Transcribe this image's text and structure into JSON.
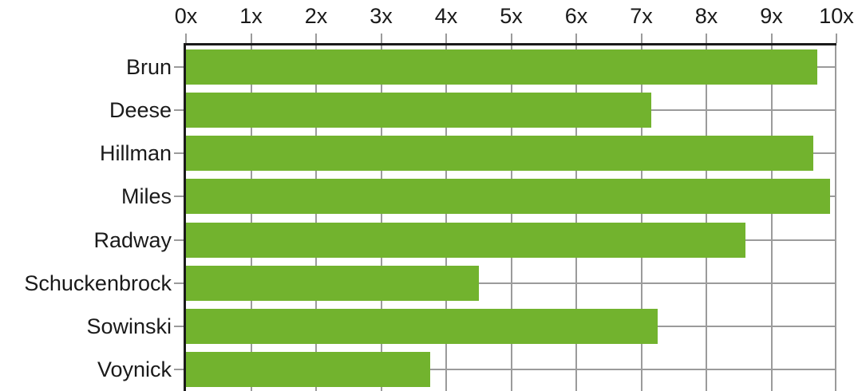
{
  "chart_data": {
    "type": "bar",
    "orientation": "horizontal",
    "categories": [
      "Brun",
      "Deese",
      "Hillman",
      "Miles",
      "Radway",
      "Schuckenbrock",
      "Sowinski",
      "Voynick"
    ],
    "values": [
      9.7,
      7.15,
      9.65,
      9.9,
      8.6,
      4.5,
      7.25,
      3.75
    ],
    "x_tick_labels": [
      "0x",
      "1x",
      "2x",
      "3x",
      "4x",
      "5x",
      "6x",
      "7x",
      "8x",
      "9x",
      "10x"
    ],
    "x_range": [
      0,
      10
    ],
    "xlabel": "",
    "ylabel": "",
    "grid": true,
    "legend": false,
    "colors": {
      "bar": "#72b32e",
      "grid": "#9b9b9b",
      "axis": "#1a1a1a",
      "text": "#1a1a1a",
      "background": "#ffffff"
    }
  }
}
